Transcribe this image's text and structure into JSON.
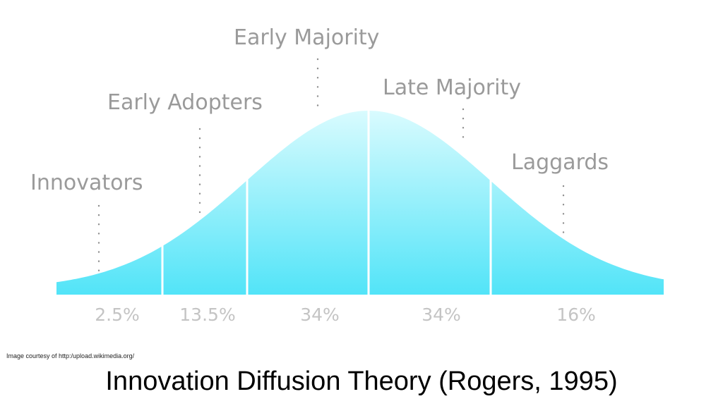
{
  "chart_data": {
    "type": "area",
    "segments": [
      {
        "label": "Innovators",
        "percent": "2.5%"
      },
      {
        "label": "Early Adopters",
        "percent": "13.5%"
      },
      {
        "label": "Early Majority",
        "percent": "34%"
      },
      {
        "label": "Late Majority",
        "percent": "34%"
      },
      {
        "label": "Laggards",
        "percent": "16%"
      }
    ]
  },
  "credit": "Image courtesy of http:/upload.wikimedia.org/",
  "title": "Innovation Diffusion Theory (Rogers, 1995)",
  "colors": {
    "curve_top": "#d9fbfe",
    "curve_bottom": "#52e4f8",
    "labels": "#9a9a9a",
    "percents": "#c4c4c4"
  }
}
